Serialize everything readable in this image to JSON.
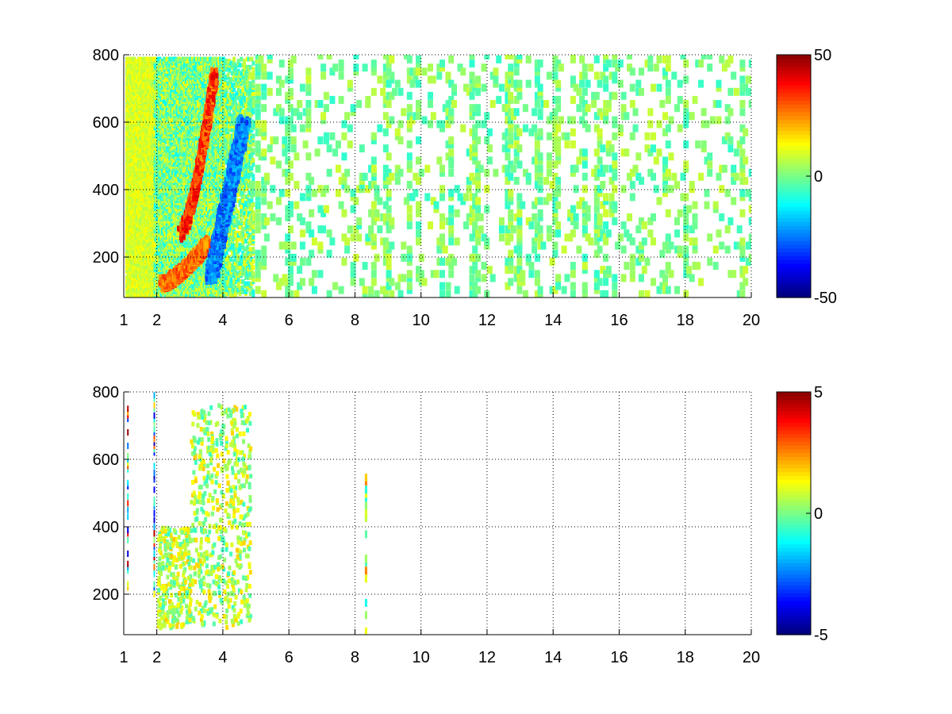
{
  "chart_data": [
    {
      "type": "heatmap",
      "title": "",
      "xlabel": "",
      "ylabel": "",
      "xlim": [
        1,
        20
      ],
      "ylim": [
        80,
        800
      ],
      "x_ticks": [
        1,
        2,
        4,
        6,
        8,
        10,
        12,
        14,
        16,
        18,
        20
      ],
      "y_ticks": [
        200,
        400,
        600,
        800
      ],
      "grid": true,
      "colormap": "jet",
      "colorbar": {
        "range": [
          -50,
          50
        ],
        "ticks": [
          50,
          0,
          -50
        ],
        "tick_labels": [
          "50",
          "0",
          "-50"
        ]
      },
      "features": [
        {
          "name": "positive ridge (upper)",
          "value": 38,
          "x_start": 2.7,
          "y_start": 270,
          "x_end": 3.7,
          "y_end": 740
        },
        {
          "name": "positive ridge (lower)",
          "value": 32,
          "x_start": 2.1,
          "y_start": 120,
          "x_end": 3.5,
          "y_end": 240
        },
        {
          "name": "negative band",
          "value": -30,
          "x_start": 3.6,
          "y_start": 140,
          "x_end": 4.6,
          "y_end": 600
        }
      ],
      "background_value_range": [
        -8,
        8
      ],
      "scatter_x_range": [
        4.8,
        20
      ]
    },
    {
      "type": "heatmap",
      "title": "",
      "xlabel": "",
      "ylabel": "",
      "xlim": [
        1,
        20
      ],
      "ylim": [
        80,
        800
      ],
      "x_ticks": [
        1,
        2,
        4,
        6,
        8,
        10,
        12,
        14,
        16,
        18,
        20
      ],
      "y_ticks": [
        200,
        400,
        600,
        800
      ],
      "grid": true,
      "colormap": "jet",
      "colorbar": {
        "range": [
          -5,
          5
        ],
        "ticks": [
          5,
          0,
          -5
        ],
        "tick_labels": [
          "5",
          "0",
          "-5"
        ]
      },
      "features": [
        {
          "name": "main cluster",
          "value": 0.5,
          "x_start": 2.0,
          "y_start": 100,
          "x_end": 4.8,
          "y_end": 760
        },
        {
          "name": "column near 8.3",
          "value": 2.5,
          "x_start": 8.3,
          "y_start": 90,
          "x_end": 8.3,
          "y_end": 570
        }
      ],
      "background_value_range": [
        -1.5,
        1.5
      ]
    }
  ]
}
